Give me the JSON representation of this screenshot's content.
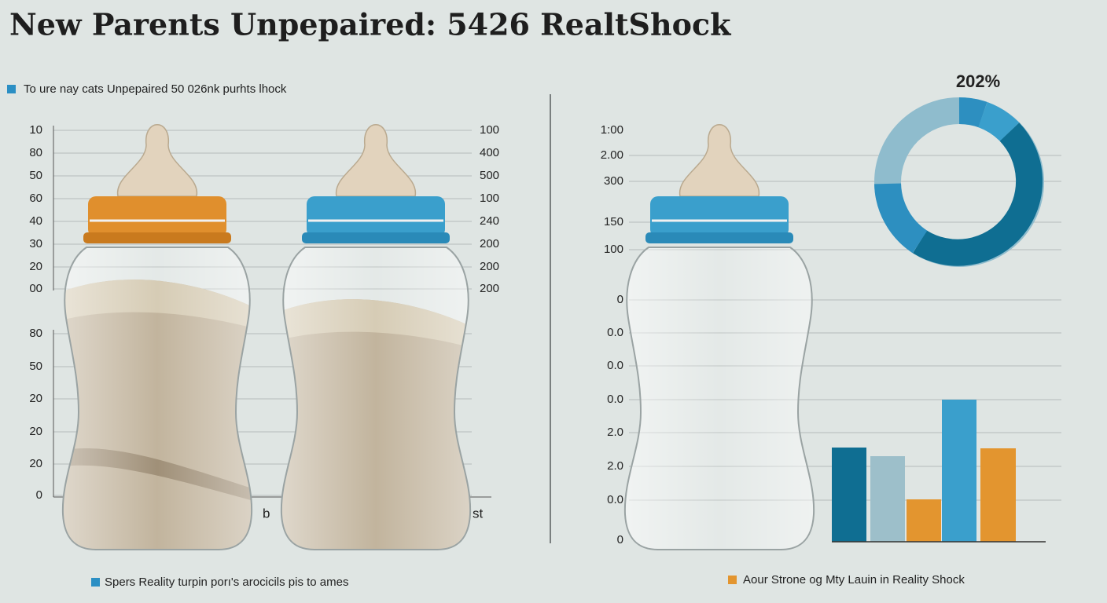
{
  "header": {
    "title": "New Parents Unpepaired: 5426 RealtShock"
  },
  "legend": {
    "top": "To ure nay cats Unpepaired 50 026nk purhts lhock",
    "bottom_left": "Spers Reality turpin porı's arocicils pis to ames",
    "bottom_right": "Aour Strone og Mty Lauin in Reality Shock"
  },
  "left_axis": {
    "upper": [
      "10",
      "80",
      "50",
      "60",
      "40",
      "30",
      "20",
      "00"
    ],
    "lower": [
      "80",
      "50",
      "20",
      "20",
      "20",
      "0"
    ]
  },
  "middle_axis": [
    "100",
    "400",
    "500",
    "100",
    "240",
    "200",
    "200",
    "200"
  ],
  "bottle_labels": [
    "b",
    "st"
  ],
  "right_panel": {
    "axis": [
      "1:00",
      "2.00",
      "300",
      "150",
      "100",
      "0",
      "0.0",
      "0.0",
      "0.0",
      "2.0",
      "2.0",
      "0.0",
      "0"
    ],
    "donut_label": "202%"
  }
}
